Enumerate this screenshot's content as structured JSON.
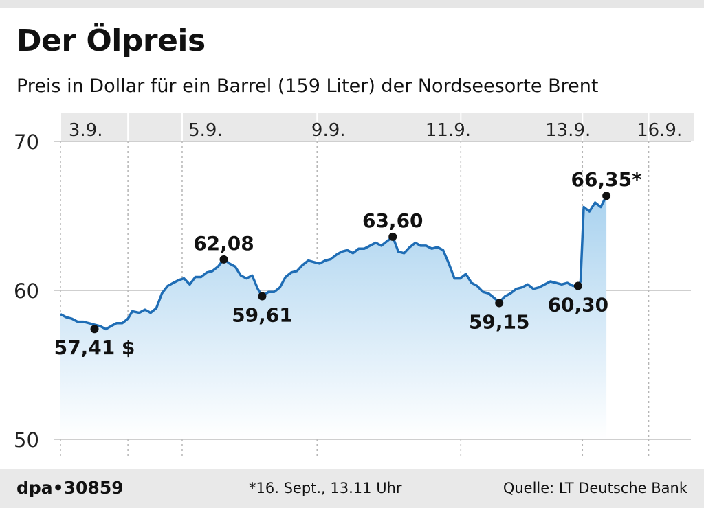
{
  "header": {
    "title": "Der Ölpreis",
    "subtitle": "Preis in Dollar für ein Barrel (159 Liter) der Nordseesorte Brent"
  },
  "footer": {
    "logo": "dpa•30859",
    "note": "*16. Sept., 13.11 Uhr",
    "source": "Quelle: LT Deutsche Bank"
  },
  "chart_data": {
    "type": "area",
    "title": "Der Ölpreis",
    "subtitle": "Preis in Dollar für ein Barrel (159 Liter) der Nordseesorte Brent",
    "xlabel": "",
    "ylabel": "",
    "ylim": [
      50,
      70
    ],
    "yticks": [
      50,
      60,
      70
    ],
    "xlim": [
      0,
      100
    ],
    "grid": true,
    "line_color": "#1f6db5",
    "fill_top_color": "#a9d2ef",
    "fill_bottom_color": "#ffffff",
    "date_labels": [
      {
        "label": "3.9.",
        "x": 4
      },
      {
        "label": "5.9.",
        "x": 23
      },
      {
        "label": "9.9.",
        "x": 42.5
      },
      {
        "label": "11.9.",
        "x": 61.5
      },
      {
        "label": "13.9.",
        "x": 80.5
      },
      {
        "label": "16.9.",
        "x": 95
      }
    ],
    "separators_x": [
      0,
      10.7,
      19.3,
      40.7,
      63.5,
      82.8,
      93.3
    ],
    "series": [
      {
        "points": [
          [
            0,
            58.4
          ],
          [
            0.9,
            58.2
          ],
          [
            1.8,
            58.1
          ],
          [
            2.7,
            57.9
          ],
          [
            3.6,
            57.9
          ],
          [
            4.5,
            57.8
          ],
          [
            5.4,
            57.7
          ],
          [
            6.3,
            57.6
          ],
          [
            7.2,
            57.4
          ],
          [
            8.0,
            57.6
          ],
          [
            8.9,
            57.8
          ],
          [
            9.8,
            57.8
          ],
          [
            10.7,
            58.1
          ],
          [
            11.4,
            58.6
          ],
          [
            12.5,
            58.5
          ],
          [
            13.4,
            58.7
          ],
          [
            14.3,
            58.5
          ],
          [
            15.2,
            58.8
          ],
          [
            16.1,
            59.8
          ],
          [
            17.0,
            60.3
          ],
          [
            17.9,
            60.5
          ],
          [
            18.8,
            60.7
          ],
          [
            19.6,
            60.8
          ],
          [
            20.5,
            60.4
          ],
          [
            21.4,
            60.9
          ],
          [
            22.3,
            60.9
          ],
          [
            23.2,
            61.2
          ],
          [
            24.1,
            61.3
          ],
          [
            25.0,
            61.6
          ],
          [
            25.9,
            62.1
          ],
          [
            26.8,
            61.8
          ],
          [
            27.7,
            61.6
          ],
          [
            28.6,
            61.0
          ],
          [
            29.5,
            60.8
          ],
          [
            30.4,
            61.0
          ],
          [
            31.3,
            60.1
          ],
          [
            32.0,
            59.6
          ],
          [
            33.0,
            59.9
          ],
          [
            33.9,
            59.9
          ],
          [
            34.8,
            60.2
          ],
          [
            35.7,
            60.9
          ],
          [
            36.6,
            61.2
          ],
          [
            37.5,
            61.3
          ],
          [
            38.4,
            61.7
          ],
          [
            39.3,
            62.0
          ],
          [
            40.2,
            61.9
          ],
          [
            41.1,
            61.8
          ],
          [
            42.0,
            62.0
          ],
          [
            42.9,
            62.1
          ],
          [
            43.8,
            62.4
          ],
          [
            44.6,
            62.6
          ],
          [
            45.5,
            62.7
          ],
          [
            46.4,
            62.5
          ],
          [
            47.3,
            62.8
          ],
          [
            48.2,
            62.8
          ],
          [
            49.1,
            63.0
          ],
          [
            50.0,
            63.2
          ],
          [
            50.9,
            63.0
          ],
          [
            51.8,
            63.3
          ],
          [
            52.7,
            63.6
          ],
          [
            53.6,
            62.6
          ],
          [
            54.5,
            62.5
          ],
          [
            55.4,
            62.9
          ],
          [
            56.3,
            63.2
          ],
          [
            57.1,
            63.0
          ],
          [
            58.0,
            63.0
          ],
          [
            58.9,
            62.8
          ],
          [
            59.8,
            62.9
          ],
          [
            60.7,
            62.7
          ],
          [
            61.6,
            61.8
          ],
          [
            62.5,
            60.8
          ],
          [
            63.4,
            60.8
          ],
          [
            64.3,
            61.1
          ],
          [
            65.2,
            60.5
          ],
          [
            66.1,
            60.3
          ],
          [
            67.0,
            59.9
          ],
          [
            67.9,
            59.8
          ],
          [
            68.8,
            59.5
          ],
          [
            69.6,
            59.2
          ],
          [
            70.5,
            59.6
          ],
          [
            71.4,
            59.8
          ],
          [
            72.3,
            60.1
          ],
          [
            73.2,
            60.2
          ],
          [
            74.1,
            60.4
          ],
          [
            75.0,
            60.1
          ],
          [
            75.9,
            60.2
          ],
          [
            76.8,
            60.4
          ],
          [
            77.7,
            60.6
          ],
          [
            78.6,
            60.5
          ],
          [
            79.5,
            60.4
          ],
          [
            80.4,
            60.5
          ],
          [
            81.3,
            60.3
          ],
          [
            82.1,
            60.3
          ],
          [
            82.5,
            60.6
          ],
          [
            83.0,
            65.6
          ],
          [
            83.9,
            65.3
          ],
          [
            84.8,
            65.9
          ],
          [
            85.7,
            65.6
          ],
          [
            86.6,
            66.35
          ]
        ]
      }
    ],
    "annotations": [
      {
        "text": "57,41 $",
        "x": 5.4,
        "y": 57.41,
        "position": "below"
      },
      {
        "text": "62,08",
        "x": 25.9,
        "y": 62.08,
        "position": "above"
      },
      {
        "text": "59,61",
        "x": 32.0,
        "y": 59.61,
        "position": "below"
      },
      {
        "text": "63,60",
        "x": 52.7,
        "y": 63.6,
        "position": "above"
      },
      {
        "text": "59,15",
        "x": 69.6,
        "y": 59.15,
        "position": "below"
      },
      {
        "text": "60,30",
        "x": 82.1,
        "y": 60.3,
        "position": "below"
      },
      {
        "text": "66,35*",
        "x": 86.6,
        "y": 66.35,
        "position": "above"
      }
    ]
  }
}
